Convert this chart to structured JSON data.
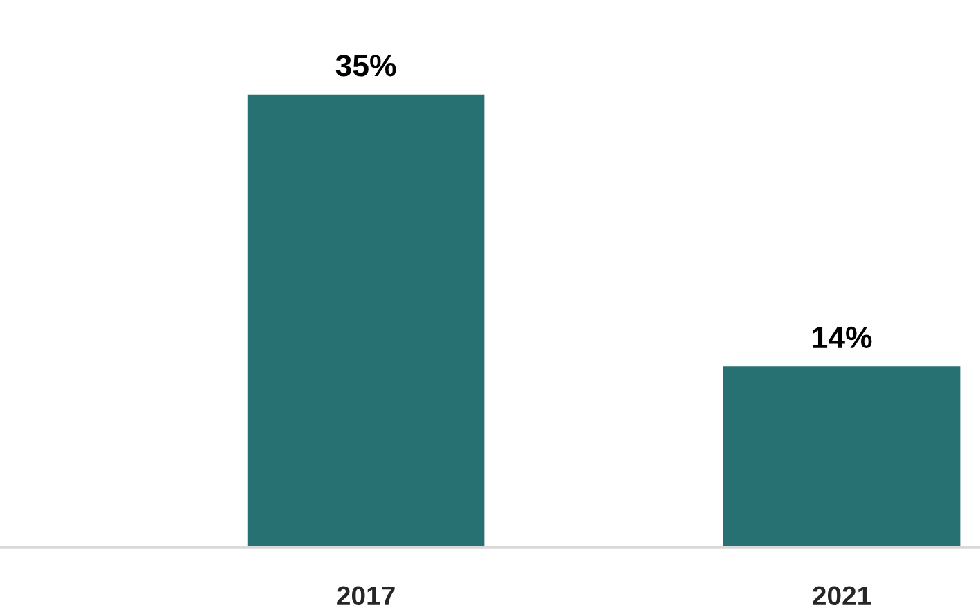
{
  "chart_data": {
    "type": "bar",
    "categories": [
      "2017",
      "2021"
    ],
    "values": [
      35,
      14
    ],
    "color": "#277173",
    "value_labels": [
      "35%",
      "14%"
    ],
    "tick_labels": "x"
  }
}
